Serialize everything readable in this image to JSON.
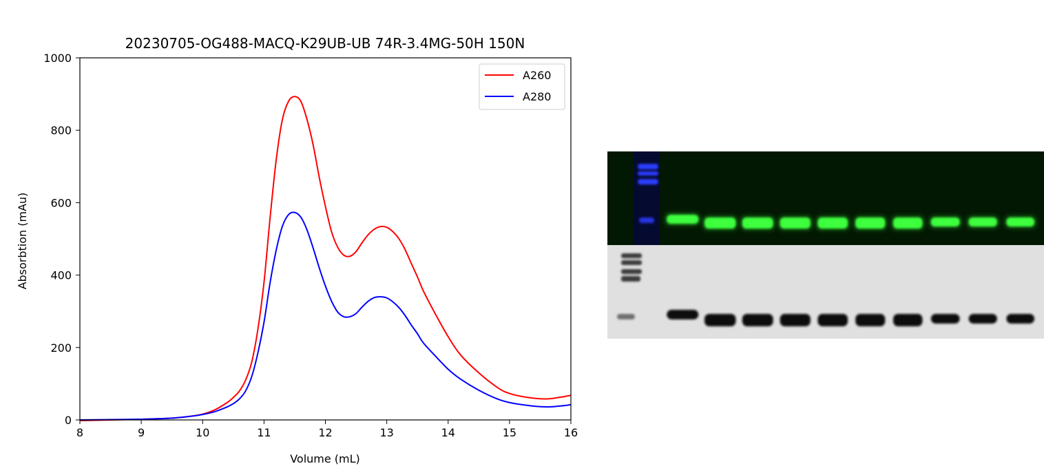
{
  "chart_data": {
    "type": "line",
    "title": "20230705-OG488-MACQ-K29UB-UB 74R-3.4MG-50H 150N",
    "xlabel": "Volume (mL)",
    "ylabel": "Absorbtion (mAu)",
    "xlim": [
      8,
      16
    ],
    "ylim": [
      0,
      1000
    ],
    "xticks": [
      "8",
      "9",
      "10",
      "11",
      "12",
      "13",
      "14",
      "15",
      "16"
    ],
    "yticks": [
      "0",
      "200",
      "400",
      "600",
      "800",
      "1000"
    ],
    "legend_position": "upper-right",
    "grid": false,
    "series": [
      {
        "name": "A260",
        "color": "#ff0000",
        "x": [
          8.0,
          9.0,
          9.5,
          9.8,
          10.0,
          10.2,
          10.4,
          10.5,
          10.6,
          10.7,
          10.8,
          10.9,
          11.0,
          11.1,
          11.2,
          11.3,
          11.4,
          11.5,
          11.6,
          11.7,
          11.8,
          11.9,
          12.0,
          12.1,
          12.2,
          12.3,
          12.4,
          12.5,
          12.6,
          12.7,
          12.8,
          12.9,
          13.0,
          13.1,
          13.2,
          13.3,
          13.4,
          13.5,
          13.6,
          13.8,
          14.0,
          14.2,
          14.5,
          14.8,
          15.0,
          15.3,
          15.6,
          15.8,
          16.0
        ],
        "y": [
          -2,
          2,
          5,
          10,
          16,
          28,
          48,
          62,
          80,
          110,
          160,
          250,
          380,
          560,
          720,
          830,
          880,
          893,
          880,
          830,
          760,
          670,
          590,
          520,
          477,
          455,
          452,
          465,
          490,
          512,
          527,
          534,
          532,
          520,
          500,
          470,
          432,
          395,
          355,
          290,
          230,
          180,
          130,
          90,
          73,
          62,
          58,
          62,
          68
        ]
      },
      {
        "name": "A280",
        "color": "#0000ff",
        "x": [
          8.0,
          9.0,
          9.5,
          9.8,
          10.0,
          10.2,
          10.4,
          10.5,
          10.6,
          10.7,
          10.8,
          10.9,
          11.0,
          11.1,
          11.2,
          11.3,
          11.4,
          11.5,
          11.6,
          11.7,
          11.8,
          11.9,
          12.0,
          12.1,
          12.2,
          12.3,
          12.4,
          12.5,
          12.6,
          12.7,
          12.8,
          12.9,
          13.0,
          13.1,
          13.2,
          13.3,
          13.4,
          13.5,
          13.6,
          13.8,
          14.0,
          14.2,
          14.5,
          14.8,
          15.0,
          15.3,
          15.6,
          15.8,
          16.0
        ],
        "y": [
          0,
          2,
          5,
          10,
          15,
          23,
          36,
          45,
          58,
          80,
          120,
          185,
          270,
          380,
          470,
          535,
          567,
          573,
          560,
          525,
          475,
          420,
          370,
          328,
          298,
          285,
          285,
          294,
          312,
          328,
          338,
          340,
          337,
          326,
          310,
          288,
          262,
          238,
          212,
          175,
          140,
          113,
          82,
          58,
          48,
          40,
          36,
          38,
          42
        ]
      }
    ]
  },
  "gel": {
    "top_colors": {
      "background": "#021802",
      "band": "#3cff3c",
      "ladder": "#2a3cff"
    },
    "bottom_colors": {
      "background": "#e0e0e0",
      "band": "#0e0e0e",
      "ladder": "#3a3a3a"
    },
    "lane_count": 10
  }
}
